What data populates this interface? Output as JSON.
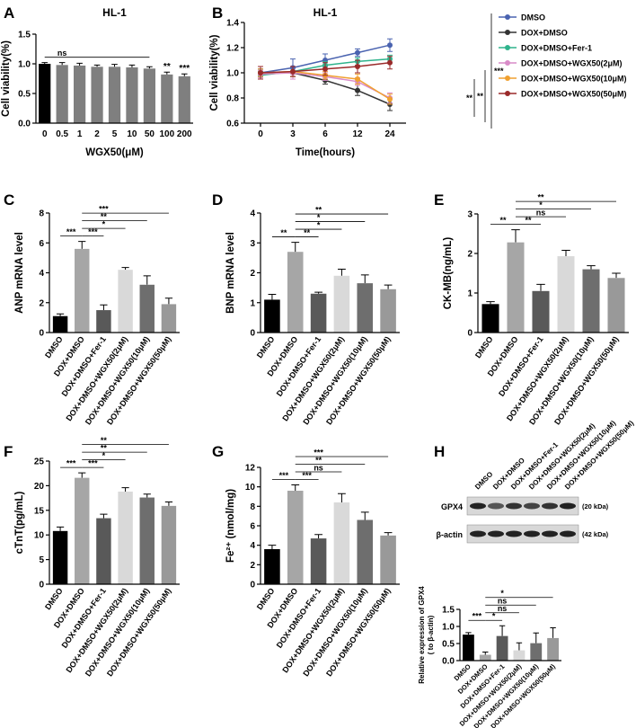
{
  "chart_data": [
    {
      "type": "bar",
      "panel": "A",
      "title": "HL-1",
      "ylabel": "Cell viability(%)",
      "xlabel": "WGX50(μM)",
      "categories": [
        "0",
        "0.5",
        "1",
        "2",
        "5",
        "10",
        "50",
        "100",
        "200"
      ],
      "values": [
        1.0,
        0.98,
        0.97,
        0.95,
        0.95,
        0.94,
        0.92,
        0.82,
        0.79
      ],
      "errors": [
        0.02,
        0.04,
        0.04,
        0.03,
        0.04,
        0.04,
        0.03,
        0.04,
        0.04
      ],
      "colors": [
        "#000000",
        "#7f7f7f",
        "#7f7f7f",
        "#7f7f7f",
        "#7f7f7f",
        "#7f7f7f",
        "#7f7f7f",
        "#7f7f7f",
        "#7f7f7f"
      ],
      "ylim": [
        0,
        1.5
      ],
      "yticks": [
        {
          "value": 0,
          "label": "0.0"
        },
        0.5,
        {
          "value": 1,
          "label": "1.0"
        },
        1.5
      ],
      "annotations": [
        {
          "label": "ns",
          "from": 0,
          "to": 6
        },
        {
          "label": "**",
          "from": 7,
          "to": 7
        },
        {
          "label": "***",
          "from": 8,
          "to": 8
        }
      ]
    },
    {
      "type": "line",
      "panel": "B",
      "title": "HL-1",
      "ylabel": "Cell viability(%)",
      "xlabel": "Time(hours)",
      "categories": [
        "0",
        "3",
        "6",
        "12",
        "24"
      ],
      "series": [
        {
          "name": "DMSO",
          "color": "#4a63b0",
          "values": [
            1.0,
            1.04,
            1.1,
            1.16,
            1.22
          ],
          "errors": [
            0.03,
            0.07,
            0.05,
            0.03,
            0.05
          ]
        },
        {
          "name": "DOX+DMSO",
          "color": "#333333",
          "values": [
            1.0,
            1.0,
            0.94,
            0.86,
            0.75
          ],
          "errors": [
            0.03,
            0.05,
            0.03,
            0.04,
            0.05
          ]
        },
        {
          "name": "DOX+DMSO+Fer-1",
          "color": "#2fb38c",
          "values": [
            0.98,
            1.01,
            1.06,
            1.09,
            1.11
          ],
          "errors": [
            0.03,
            0.04,
            0.03,
            0.03,
            0.03
          ]
        },
        {
          "name": "DOX+DMSO+WGX50(2μM)",
          "color": "#d98cc8",
          "values": [
            0.99,
            1.0,
            0.97,
            0.93,
            0.8
          ],
          "errors": [
            0.03,
            0.05,
            0.03,
            0.03,
            0.04
          ]
        },
        {
          "name": "DOX+DMSO+WGX50(10μM)",
          "color": "#f0a030",
          "values": [
            1.0,
            1.01,
            0.98,
            0.95,
            0.79
          ],
          "errors": [
            0.03,
            0.04,
            0.03,
            0.04,
            0.04
          ]
        },
        {
          "name": "DOX+DMSO+WGX50(50μM)",
          "color": "#9a2a2a",
          "values": [
            1.0,
            1.01,
            1.03,
            1.05,
            1.08
          ],
          "errors": [
            0.05,
            0.04,
            0.05,
            0.05,
            0.05
          ]
        }
      ],
      "ylim": [
        0.6,
        1.4
      ],
      "yticks": [
        0.6,
        0.8,
        {
          "value": 1,
          "label": "1.0"
        },
        1.2,
        1.4
      ],
      "annotations": [
        "**",
        "**",
        "***"
      ]
    },
    {
      "type": "bar",
      "panel": "C",
      "ylabel": "ANP mRNA level",
      "categories": [
        "DMSO",
        "DOX+DMSO",
        "DOX+DMSO+Fer-1",
        "DOX+DMSO+WGX50(2μM)",
        "DOX+DMSO+WGX50(10μM)",
        "DOX+DMSO+WGX50(50μM)"
      ],
      "values": [
        1.1,
        5.6,
        1.5,
        4.2,
        3.2,
        1.9
      ],
      "errors": [
        0.15,
        0.5,
        0.35,
        0.15,
        0.6,
        0.4
      ],
      "colors": [
        "#000000",
        "#a6a6a6",
        "#595959",
        "#d9d9d9",
        "#6e6e6e",
        "#999999"
      ],
      "ylim": [
        0,
        8
      ],
      "yticks": [
        0,
        2,
        4,
        6,
        8
      ],
      "annotations": [
        {
          "label": "***",
          "from": 1,
          "to": 5
        },
        {
          "label": "**",
          "from": 1,
          "to": 4
        },
        {
          "label": "*",
          "from": 1,
          "to": 3
        },
        {
          "label": "***",
          "from": 1,
          "to": 2
        },
        {
          "label": "***",
          "from": 0,
          "to": 1
        }
      ]
    },
    {
      "type": "bar",
      "panel": "D",
      "ylabel": "BNP mRNA level",
      "categories": [
        "DMSO",
        "DOX+DMSO",
        "DOX+DMSO+Fer-1",
        "DOX+DMSO+WGX50(2μM)",
        "DOX+DMSO+WGX50(10μM)",
        "DOX+DMSO+WGX50(50μM)"
      ],
      "values": [
        1.1,
        2.7,
        1.3,
        1.9,
        1.65,
        1.45
      ],
      "errors": [
        0.18,
        0.32,
        0.05,
        0.22,
        0.28,
        0.14
      ],
      "colors": [
        "#000000",
        "#a6a6a6",
        "#595959",
        "#d9d9d9",
        "#6e6e6e",
        "#999999"
      ],
      "ylim": [
        0,
        4
      ],
      "yticks": [
        0,
        1,
        2,
        3,
        4
      ],
      "annotations": [
        {
          "label": "**",
          "from": 1,
          "to": 5
        },
        {
          "label": "*",
          "from": 1,
          "to": 4
        },
        {
          "label": "*",
          "from": 1,
          "to": 3
        },
        {
          "label": "**",
          "from": 1,
          "to": 2
        },
        {
          "label": "**",
          "from": 0,
          "to": 1
        }
      ]
    },
    {
      "type": "bar",
      "panel": "E",
      "ylabel": "CK-MB(ng/mL)",
      "categories": [
        "DMSO",
        "DOX+DMSO",
        "DOX+DMSO+Fer-1",
        "DOX+DMSO+WGX50(2μM)",
        "DOX+DMSO+WGX50(10μM)",
        "DOX+DMSO+WGX50(50μM)"
      ],
      "values": [
        0.72,
        2.28,
        1.05,
        1.93,
        1.6,
        1.38
      ],
      "errors": [
        0.06,
        0.32,
        0.17,
        0.15,
        0.09,
        0.12
      ],
      "colors": [
        "#000000",
        "#a6a6a6",
        "#595959",
        "#d9d9d9",
        "#6e6e6e",
        "#999999"
      ],
      "ylim": [
        0,
        3
      ],
      "yticks": [
        0,
        1,
        2,
        3
      ],
      "annotations": [
        {
          "label": "**",
          "from": 1,
          "to": 5
        },
        {
          "label": "*",
          "from": 1,
          "to": 4
        },
        {
          "label": "ns",
          "from": 1,
          "to": 3
        },
        {
          "label": "**",
          "from": 1,
          "to": 2
        },
        {
          "label": "**",
          "from": 0,
          "to": 1
        }
      ]
    },
    {
      "type": "bar",
      "panel": "F",
      "ylabel": "cTnT(pg/mL)",
      "categories": [
        "DMSO",
        "DOX+DMSO",
        "DOX+DMSO+Fer-1",
        "DOX+DMSO+WGX50(2μM)",
        "DOX+DMSO+WGX50(10μM)",
        "DOX+DMSO+WGX50(50μM)"
      ],
      "values": [
        10.8,
        21.6,
        13.4,
        18.8,
        17.6,
        15.9
      ],
      "errors": [
        0.8,
        1.0,
        0.8,
        0.8,
        0.7,
        0.8
      ],
      "colors": [
        "#000000",
        "#a6a6a6",
        "#595959",
        "#d9d9d9",
        "#6e6e6e",
        "#999999"
      ],
      "ylim": [
        0,
        25
      ],
      "yticks": [
        0,
        5,
        10,
        15,
        20,
        25
      ],
      "annotations": [
        {
          "label": "**",
          "from": 1,
          "to": 5
        },
        {
          "label": "**",
          "from": 1,
          "to": 4
        },
        {
          "label": "*",
          "from": 1,
          "to": 3
        },
        {
          "label": "***",
          "from": 1,
          "to": 2
        },
        {
          "label": "***",
          "from": 0,
          "to": 1
        }
      ]
    },
    {
      "type": "bar",
      "panel": "G",
      "ylabel": "Fe²⁺ (nmol/mg)",
      "categories": [
        "DMSO",
        "DOX+DMSO",
        "DOX+DMSO+Fer-1",
        "DOX+DMSO+WGX50(2μM)",
        "DOX+DMSO+WGX50(10μM)",
        "DOX+DMSO+WGX50(50μM)"
      ],
      "values": [
        3.6,
        9.6,
        4.7,
        8.4,
        6.6,
        5.0
      ],
      "errors": [
        0.4,
        0.6,
        0.4,
        0.9,
        0.8,
        0.3
      ],
      "colors": [
        "#000000",
        "#a6a6a6",
        "#595959",
        "#d9d9d9",
        "#6e6e6e",
        "#999999"
      ],
      "ylim": [
        0,
        12
      ],
      "yticks": [
        0,
        2,
        4,
        6,
        8,
        10,
        12
      ],
      "annotations": [
        {
          "label": "***",
          "from": 1,
          "to": 5
        },
        {
          "label": "**",
          "from": 1,
          "to": 4
        },
        {
          "label": "ns",
          "from": 1,
          "to": 3
        },
        {
          "label": "***",
          "from": 1,
          "to": 2
        },
        {
          "label": "***",
          "from": 0,
          "to": 1
        }
      ]
    },
    {
      "type": "bar",
      "panel": "H",
      "ylabel": [
        "Relative expression of GPX4",
        "( to β-actin)"
      ],
      "blot": {
        "lanes": [
          "DMSO",
          "DOX+DMSO",
          "DOX+DMSO+Fer-1",
          "DOX+DMSO+WGX50(2μM)",
          "DOX+DMSO+WGX50(10μM)",
          "DOX+DMSO+WGX50(50μM)"
        ],
        "rows": [
          {
            "label": "GPX4",
            "size": "(20 kDa)"
          },
          {
            "label": "β-actin",
            "size": "(42 kDa)"
          }
        ]
      },
      "categories": [
        "DMSO",
        "DOX+DMSO",
        "DOX+DMSO+Fer-1",
        "DOX+DMSO+WGX50(2μM)",
        "DOX+DMSO+WGX50(10μM)",
        "DOX+DMSO+WGX50(50μM)"
      ],
      "values": [
        0.76,
        0.17,
        0.72,
        0.3,
        0.51,
        0.66
      ],
      "errors": [
        0.06,
        0.08,
        0.3,
        0.22,
        0.3,
        0.3
      ],
      "colors": [
        "#000000",
        "#a6a6a6",
        "#595959",
        "#d9d9d9",
        "#6e6e6e",
        "#999999"
      ],
      "ylim": [
        0,
        1.5
      ],
      "yticks": [
        {
          "value": 0,
          "label": "0.0"
        },
        0.5,
        {
          "value": 1,
          "label": "1.0"
        },
        1.5
      ],
      "annotations": [
        {
          "label": "*",
          "from": 1,
          "to": 5
        },
        {
          "label": "ns",
          "from": 1,
          "to": 4
        },
        {
          "label": "ns",
          "from": 1,
          "to": 3
        },
        {
          "label": "*",
          "from": 1,
          "to": 2
        },
        {
          "label": "***",
          "from": 0,
          "to": 1
        }
      ]
    }
  ]
}
